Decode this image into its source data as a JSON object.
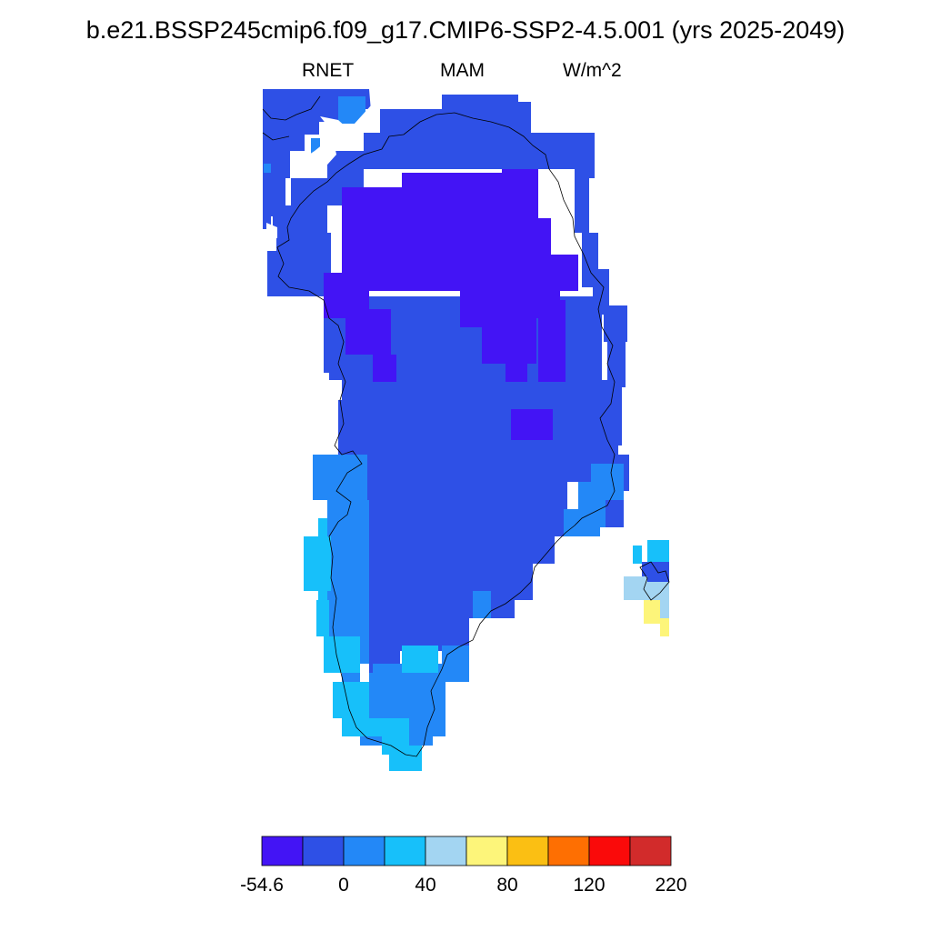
{
  "title": "b.e21.BSSP245cmip6.f09_g17.CMIP6-SSP2-4.5.001 (yrs 2025-2049)",
  "subtitle": {
    "variable": "RNET",
    "season": "MAM",
    "units": "W/m^2"
  },
  "colors": {
    "levels": [
      "#4314f5",
      "#2e50e6",
      "#2388f7",
      "#17c0fa",
      "#a3d5f2",
      "#fdf57a",
      "#fbbf13",
      "#fe6f02",
      "#fa0a0a",
      "#d22b2b"
    ],
    "outline": "#000000",
    "background": "#ffffff"
  },
  "colorbar": {
    "tick_labels": [
      "-54.6",
      "0",
      "40",
      "80",
      "120",
      "220"
    ],
    "tick_bins": [
      0,
      2,
      4,
      6,
      8,
      10
    ]
  }
}
